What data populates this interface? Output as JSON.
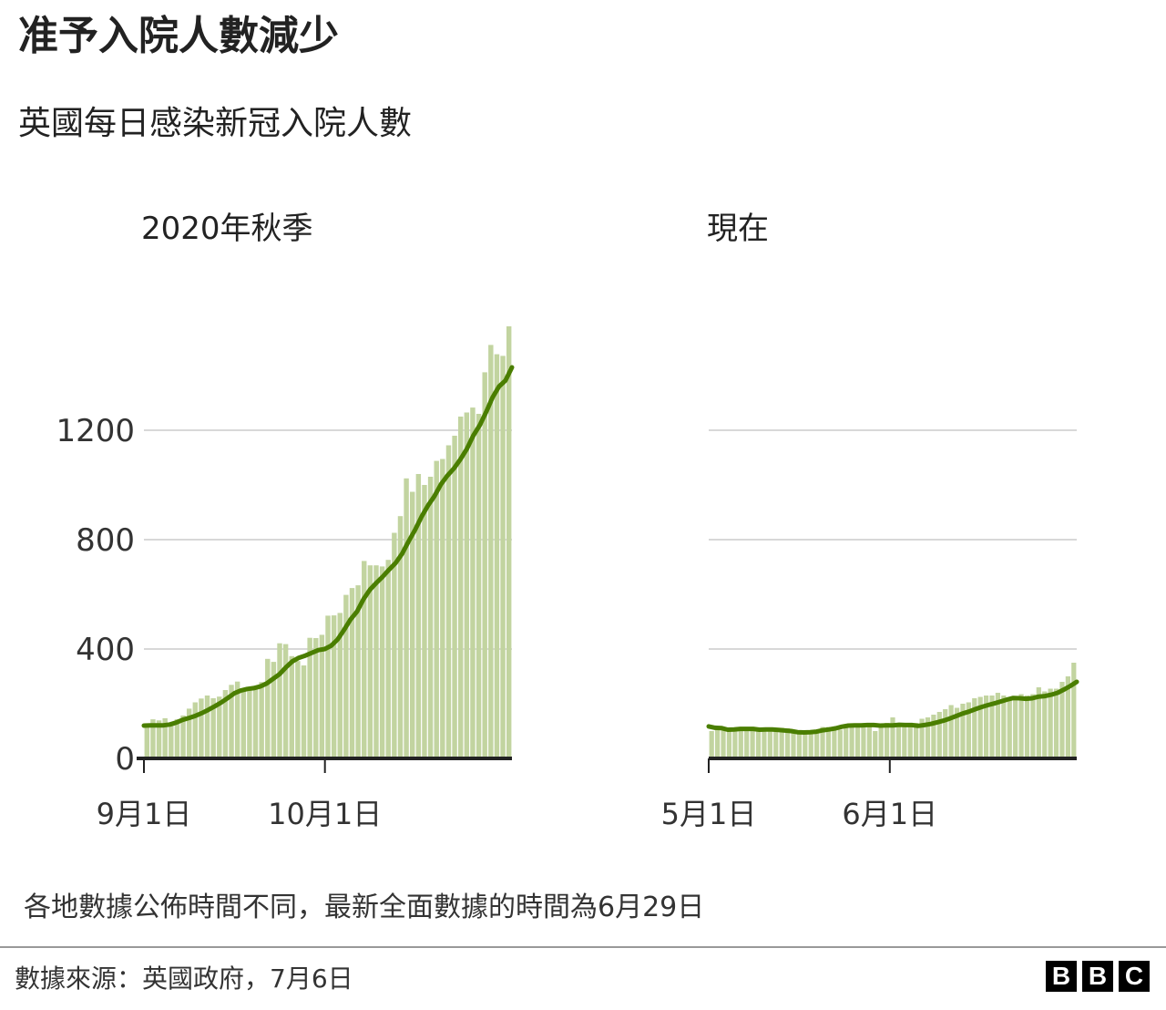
{
  "title": "准予入院人數減少",
  "subtitle": "英國每日感染新冠入院人數",
  "footnote": "各地數據公佈時間不同，最新全面數據的時間為6月29日",
  "source": "數據來源：英國政府，7月6日",
  "brand": [
    "B",
    "B",
    "C"
  ],
  "colors": {
    "bar": "#c2d4a0",
    "line": "#4a7e00",
    "grid": "#cccccc",
    "axis": "#222222"
  },
  "chart_data": [
    {
      "type": "bar",
      "panel_title": "2020年秋季",
      "y_ticks": [
        "0",
        "400",
        "800",
        "1200"
      ],
      "x_ticks": [
        "9月1日",
        "10月1日"
      ],
      "ylim": [
        0,
        1600
      ],
      "daily_admissions": [
        128,
        143,
        139,
        147,
        130,
        143,
        157,
        182,
        205,
        219,
        230,
        220,
        226,
        250,
        269,
        281,
        247,
        253,
        261,
        279,
        364,
        353,
        421,
        418,
        374,
        356,
        340,
        441,
        440,
        452,
        522,
        523,
        532,
        598,
        623,
        633,
        722,
        706,
        706,
        702,
        726,
        825,
        886,
        1024,
        975,
        1040,
        1000,
        1030,
        1088,
        1095,
        1145,
        1180,
        1250,
        1265,
        1283,
        1260,
        1412,
        1512,
        1478,
        1472,
        1580
      ],
      "seven_day_average": [
        120,
        121,
        121,
        121,
        124,
        131,
        141,
        148,
        156,
        166,
        178,
        191,
        205,
        221,
        238,
        248,
        254,
        257,
        263,
        274,
        291,
        308,
        333,
        355,
        368,
        376,
        386,
        396,
        400,
        412,
        435,
        470,
        508,
        537,
        582,
        617,
        642,
        665,
        691,
        715,
        749,
        794,
        836,
        884,
        925,
        959,
        1002,
        1034,
        1060,
        1093,
        1131,
        1180,
        1218,
        1266,
        1320,
        1360,
        1382,
        1430
      ]
    },
    {
      "type": "bar",
      "panel_title": "現在",
      "y_ticks": [
        "0",
        "400",
        "800",
        "1200"
      ],
      "x_ticks": [
        "5月1日",
        "6月1日"
      ],
      "ylim": [
        0,
        1600
      ],
      "daily_admissions": [
        100,
        115,
        110,
        112,
        105,
        115,
        112,
        108,
        110,
        112,
        110,
        105,
        112,
        110,
        105,
        100,
        95,
        90,
        105,
        115,
        115,
        110,
        105,
        115,
        125,
        120,
        122,
        125,
        100,
        128,
        130,
        150,
        125,
        120,
        125,
        130,
        145,
        150,
        160,
        170,
        180,
        195,
        185,
        200,
        205,
        220,
        225,
        230,
        230,
        240,
        230,
        225,
        220,
        235,
        230,
        235,
        260,
        245,
        255,
        255,
        280,
        300,
        350
      ],
      "seven_day_average": [
        117,
        112,
        111,
        105,
        106,
        108,
        108,
        108,
        105,
        106,
        106,
        104,
        102,
        100,
        96,
        95,
        96,
        98,
        103,
        106,
        110,
        116,
        120,
        121,
        121,
        122,
        122,
        120,
        121,
        121,
        123,
        122,
        122,
        119,
        122,
        126,
        132,
        138,
        146,
        155,
        164,
        171,
        180,
        188,
        195,
        201,
        208,
        215,
        221,
        220,
        218,
        220,
        226,
        228,
        233,
        240,
        252,
        265,
        280
      ]
    }
  ]
}
